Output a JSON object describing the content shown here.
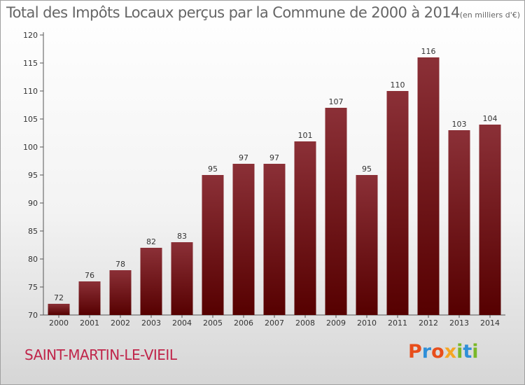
{
  "title": "Total des Impôts Locaux perçus par la Commune de 2000 à 2014",
  "title_unit": "(en milliers d'€)",
  "commune": "SAINT-MARTIN-LE-VIEIL",
  "logo": "Proxiti",
  "colors": {
    "bar_top": "#8b3037",
    "bar_bottom": "#560000",
    "title": "#666666",
    "commune": "#c0254a",
    "logo": [
      "#e84e1b",
      "#2f8fd8",
      "#e84e1b",
      "#f5a623",
      "#7ab828",
      "#2f8fd8",
      "#7ab828"
    ]
  },
  "chart_data": {
    "type": "bar",
    "title": "Total des Impôts Locaux perçus par la Commune de 2000 à 2014",
    "xlabel": "",
    "ylabel": "",
    "categories": [
      "2000",
      "2001",
      "2002",
      "2003",
      "2004",
      "2005",
      "2006",
      "2007",
      "2008",
      "2009",
      "2010",
      "2011",
      "2012",
      "2013",
      "2014"
    ],
    "values": [
      72,
      76,
      78,
      82,
      83,
      95,
      97,
      97,
      101,
      107,
      95,
      110,
      116,
      103,
      104
    ],
    "ylim": [
      70,
      120
    ],
    "yticks": [
      70,
      75,
      80,
      85,
      90,
      95,
      100,
      105,
      110,
      115,
      120
    ],
    "grid": false
  }
}
